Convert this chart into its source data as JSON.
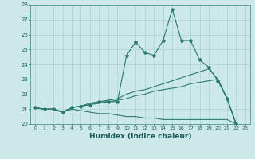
{
  "xlabel": "Humidex (Indice chaleur)",
  "bg_color": "#cce8e8",
  "grid_color": "#a8d4d4",
  "line_color": "#2a7a6a",
  "xlim": [
    -0.5,
    23.5
  ],
  "ylim": [
    20,
    28
  ],
  "xticks": [
    0,
    1,
    2,
    3,
    4,
    5,
    6,
    7,
    8,
    9,
    10,
    11,
    12,
    13,
    14,
    15,
    16,
    17,
    18,
    19,
    20,
    21,
    22,
    23
  ],
  "yticks": [
    20,
    21,
    22,
    23,
    24,
    25,
    26,
    27,
    28
  ],
  "series": {
    "line1_x": [
      0,
      1,
      2,
      3,
      4,
      5,
      6,
      7,
      8,
      9,
      10,
      11,
      12,
      13,
      14,
      15,
      16,
      17,
      18,
      19,
      20,
      21,
      22,
      23
    ],
    "line1_y": [
      21.1,
      21.0,
      21.0,
      20.8,
      21.1,
      21.2,
      21.3,
      21.5,
      21.5,
      21.5,
      24.6,
      25.5,
      24.8,
      24.6,
      25.6,
      27.7,
      25.6,
      25.6,
      24.3,
      23.8,
      22.9,
      21.7,
      20.0,
      19.8
    ],
    "line2_x": [
      0,
      1,
      2,
      3,
      4,
      5,
      6,
      7,
      8,
      9,
      10,
      11,
      12,
      13,
      14,
      15,
      16,
      17,
      18,
      19,
      20,
      21,
      22,
      23
    ],
    "line2_y": [
      21.1,
      21.0,
      21.0,
      20.8,
      21.1,
      21.2,
      21.4,
      21.5,
      21.6,
      21.7,
      22.0,
      22.2,
      22.3,
      22.5,
      22.7,
      22.9,
      23.1,
      23.3,
      23.5,
      23.7,
      23.0,
      21.7,
      20.0,
      19.8
    ],
    "line3_x": [
      0,
      1,
      2,
      3,
      4,
      5,
      6,
      7,
      8,
      9,
      10,
      11,
      12,
      13,
      14,
      15,
      16,
      17,
      18,
      19,
      20,
      21,
      22,
      23
    ],
    "line3_y": [
      21.1,
      21.0,
      21.0,
      20.8,
      21.1,
      21.2,
      21.3,
      21.4,
      21.5,
      21.6,
      21.7,
      21.9,
      22.0,
      22.2,
      22.3,
      22.4,
      22.5,
      22.7,
      22.8,
      22.9,
      23.0,
      21.7,
      20.0,
      19.8
    ],
    "line4_x": [
      0,
      1,
      2,
      3,
      4,
      5,
      6,
      7,
      8,
      9,
      10,
      11,
      12,
      13,
      14,
      15,
      16,
      17,
      18,
      19,
      20,
      21,
      22,
      23
    ],
    "line4_y": [
      21.1,
      21.0,
      21.0,
      20.8,
      21.0,
      20.9,
      20.8,
      20.7,
      20.7,
      20.6,
      20.5,
      20.5,
      20.4,
      20.4,
      20.3,
      20.3,
      20.3,
      20.3,
      20.3,
      20.3,
      20.3,
      20.3,
      20.0,
      19.8
    ]
  }
}
